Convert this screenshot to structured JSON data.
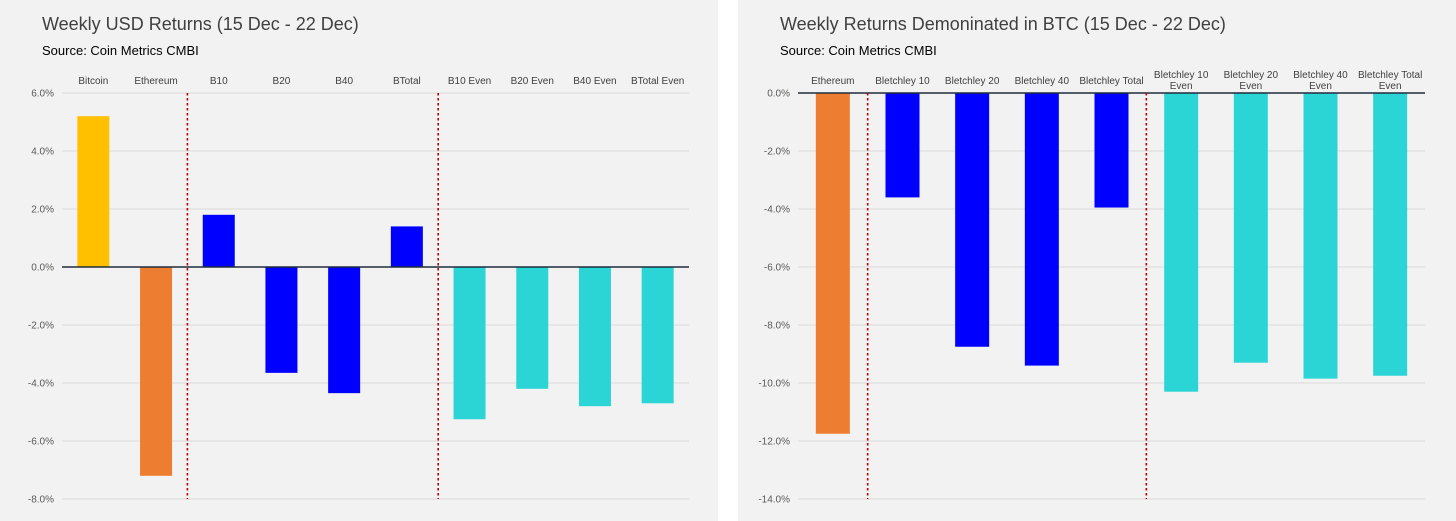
{
  "colors": {
    "bitcoin": "#ffc000",
    "ethereum": "#ed7d31",
    "bletchley": "#0000ff",
    "even": "#2bd5d5",
    "divider": "#c00000",
    "zero_line": "#1f2d3d",
    "grid": "#d9d9d9",
    "panel_bg": "#f2f2f2"
  },
  "chart_data": [
    {
      "type": "bar",
      "title": "Weekly USD Returns (15 Dec - 22 Dec)",
      "subtitle": "Source: Coin Metrics CMBI",
      "categories": [
        [
          "Bitcoin"
        ],
        [
          "Ethereum"
        ],
        [
          "B10"
        ],
        [
          "B20"
        ],
        [
          "B40"
        ],
        [
          "BTotal"
        ],
        [
          "B10 Even"
        ],
        [
          "B20 Even"
        ],
        [
          "B40 Even"
        ],
        [
          "BTotal Even"
        ]
      ],
      "values": [
        5.2,
        -7.2,
        1.8,
        -3.65,
        -4.35,
        1.4,
        -5.25,
        -4.2,
        -4.8,
        -4.7
      ],
      "bar_colors": [
        "bitcoin",
        "ethereum",
        "bletchley",
        "bletchley",
        "bletchley",
        "bletchley",
        "even",
        "even",
        "even",
        "even"
      ],
      "y_ticks": [
        "6.0%",
        "4.0%",
        "2.0%",
        "0.0%",
        "-2.0%",
        "-4.0%",
        "-6.0%",
        "-8.0%"
      ],
      "ylim": [
        -8,
        6
      ],
      "grid": true,
      "dividers_after": [
        2,
        6
      ],
      "xlabel": "",
      "ylabel": ""
    },
    {
      "type": "bar",
      "title": "Weekly Returns Demoninated in BTC (15 Dec - 22 Dec)",
      "subtitle": "Source: Coin Metrics CMBI",
      "categories": [
        [
          "Ethereum"
        ],
        [
          "Bletchley 10"
        ],
        [
          "Bletchley 20"
        ],
        [
          "Bletchley 40"
        ],
        [
          "Bletchley Total"
        ],
        [
          "Bletchley 10",
          "Even"
        ],
        [
          "Bletchley 20",
          "Even"
        ],
        [
          "Bletchley 40",
          "Even"
        ],
        [
          "Bletchley Total",
          "Even"
        ]
      ],
      "values": [
        -11.75,
        -3.6,
        -8.75,
        -9.4,
        -3.95,
        -10.3,
        -9.3,
        -9.85,
        -9.75
      ],
      "bar_colors": [
        "ethereum",
        "bletchley",
        "bletchley",
        "bletchley",
        "bletchley",
        "even",
        "even",
        "even",
        "even"
      ],
      "y_ticks": [
        "0.0%",
        "-2.0%",
        "-4.0%",
        "-6.0%",
        "-8.0%",
        "-10.0%",
        "-12.0%",
        "-14.0%"
      ],
      "ylim": [
        -14,
        0
      ],
      "grid": true,
      "dividers_after": [
        1,
        5
      ],
      "xlabel": "",
      "ylabel": ""
    }
  ]
}
